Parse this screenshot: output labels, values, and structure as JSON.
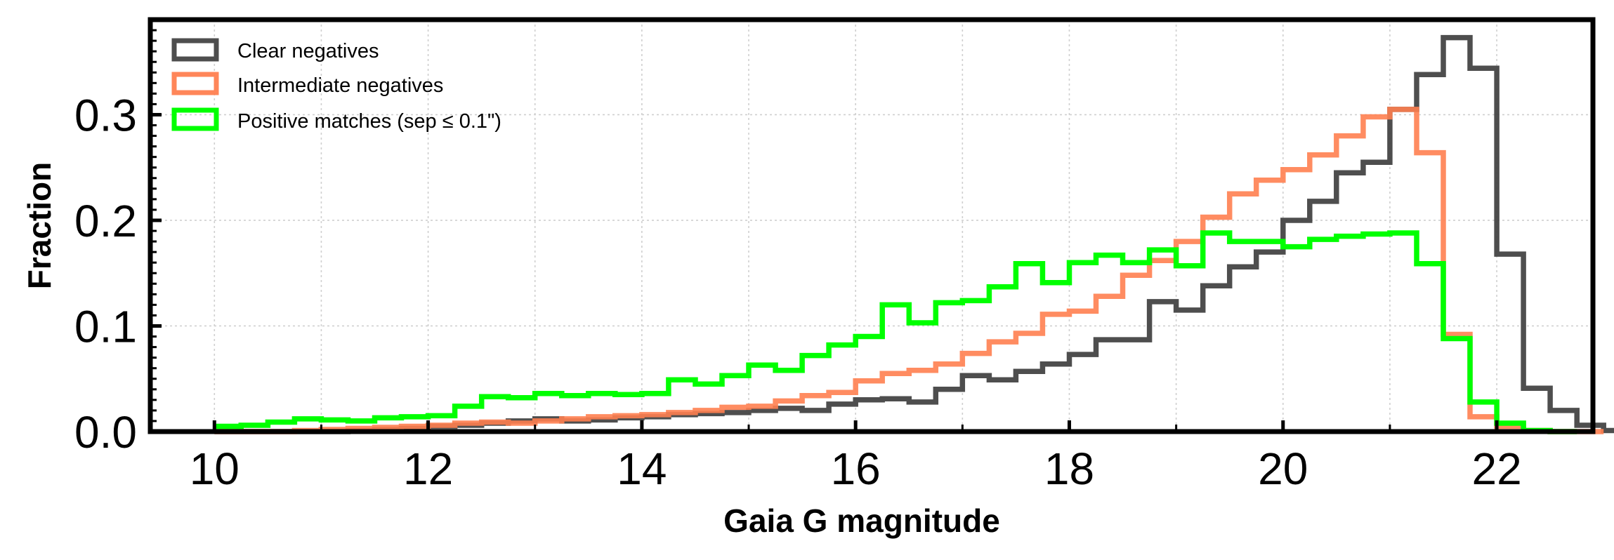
{
  "chart_data": {
    "type": "histogram",
    "title": "",
    "xlabel": "Gaia G magnitude",
    "ylabel": "Fraction",
    "xlim": [
      9.4,
      22.9
    ],
    "ylim": [
      0,
      0.39
    ],
    "x_ticks": [
      10,
      12,
      14,
      16,
      18,
      20,
      22
    ],
    "y_ticks": [
      0.0,
      0.1,
      0.2,
      0.3
    ],
    "grid": true,
    "legend_position": "top-left",
    "bin_start": 10.0,
    "bin_width": 0.25,
    "series": [
      {
        "name": "Clear negatives",
        "color": "#444444",
        "values": [
          0.0,
          0.0,
          0.0,
          0.0,
          0.0,
          0.001,
          0.002,
          0.003,
          0.005,
          0.006,
          0.008,
          0.01,
          0.012,
          0.01,
          0.011,
          0.013,
          0.014,
          0.016,
          0.017,
          0.018,
          0.02,
          0.022,
          0.02,
          0.026,
          0.03,
          0.031,
          0.028,
          0.04,
          0.053,
          0.049,
          0.057,
          0.064,
          0.073,
          0.087,
          0.087,
          0.123,
          0.115,
          0.138,
          0.156,
          0.17,
          0.2,
          0.218,
          0.245,
          0.255,
          0.305,
          0.338,
          0.373,
          0.344,
          0.168,
          0.041,
          0.02,
          0.006,
          0.001,
          0.0
        ]
      },
      {
        "name": "Intermediate negatives",
        "color": "#ff7f50",
        "values": [
          0.0,
          0.0,
          0.0,
          0.001,
          0.002,
          0.003,
          0.004,
          0.005,
          0.006,
          0.008,
          0.009,
          0.008,
          0.01,
          0.012,
          0.014,
          0.015,
          0.016,
          0.018,
          0.02,
          0.023,
          0.024,
          0.029,
          0.034,
          0.037,
          0.048,
          0.055,
          0.058,
          0.064,
          0.074,
          0.085,
          0.093,
          0.111,
          0.114,
          0.128,
          0.148,
          0.162,
          0.18,
          0.203,
          0.225,
          0.238,
          0.248,
          0.262,
          0.28,
          0.298,
          0.305,
          0.264,
          0.092,
          0.014,
          0.005,
          0.001,
          0.0,
          0.0
        ]
      },
      {
        "name": "Positive matches (sep ≤ 0.1\")",
        "color": "#00ff00",
        "values": [
          0.005,
          0.006,
          0.009,
          0.012,
          0.011,
          0.01,
          0.013,
          0.014,
          0.015,
          0.024,
          0.033,
          0.032,
          0.036,
          0.034,
          0.036,
          0.035,
          0.036,
          0.049,
          0.045,
          0.053,
          0.063,
          0.058,
          0.072,
          0.082,
          0.09,
          0.12,
          0.103,
          0.122,
          0.124,
          0.137,
          0.159,
          0.141,
          0.16,
          0.167,
          0.16,
          0.172,
          0.157,
          0.188,
          0.18,
          0.18,
          0.175,
          0.182,
          0.185,
          0.187,
          0.188,
          0.159,
          0.088,
          0.028,
          0.008,
          0.001,
          0.0
        ]
      }
    ]
  }
}
